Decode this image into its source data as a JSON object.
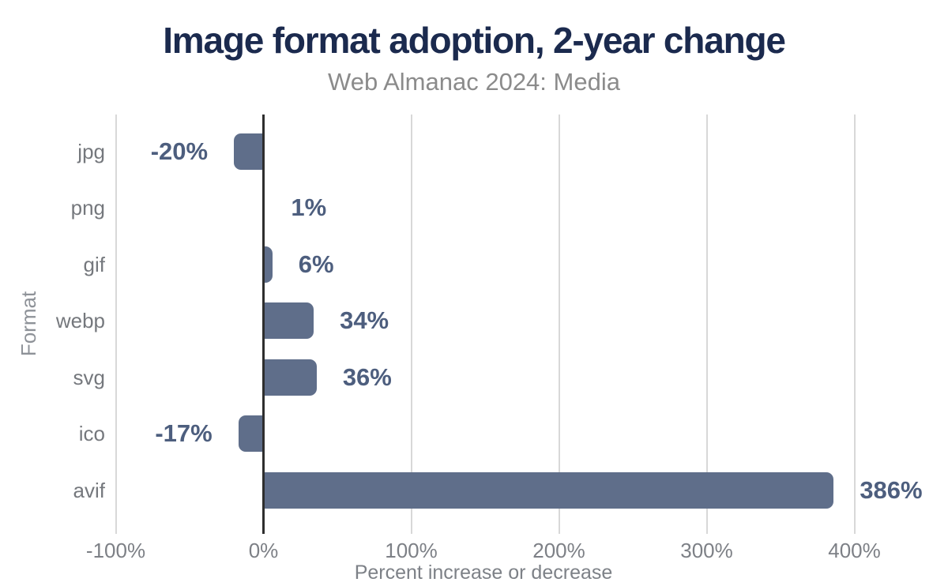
{
  "chart_data": {
    "type": "bar",
    "orientation": "horizontal",
    "title": "Image format adoption, 2-year change",
    "subtitle": "Web Almanac 2024: Media",
    "xlabel": "Percent increase or decrease",
    "ylabel": "Format",
    "categories": [
      "jpg",
      "png",
      "gif",
      "webp",
      "svg",
      "ico",
      "avif"
    ],
    "values": [
      -20,
      1,
      6,
      34,
      36,
      -17,
      386
    ],
    "value_labels": [
      "-20%",
      "1%",
      "6%",
      "34%",
      "36%",
      "-17%",
      "386%"
    ],
    "xlim": [
      -100,
      460
    ],
    "xticks": [
      -100,
      0,
      100,
      200,
      300,
      400
    ],
    "xtick_labels": [
      "-100%",
      "0%",
      "100%",
      "200%",
      "300%",
      "400%"
    ],
    "grid": "vertical",
    "legend": "none",
    "colors": {
      "background": "#ffffff",
      "bar": "#5f6e8a",
      "title": "#1b2a4e",
      "subtitle": "#8b8b8b",
      "value_label": "#4d5e7e",
      "category_label": "#75787d",
      "tick_label": "#7d8086",
      "x_axis_title": "#7d8187",
      "y_axis_title": "#8e9298",
      "zero_axis": "#2e2e2e",
      "gridline": "#d8d8d8"
    }
  }
}
